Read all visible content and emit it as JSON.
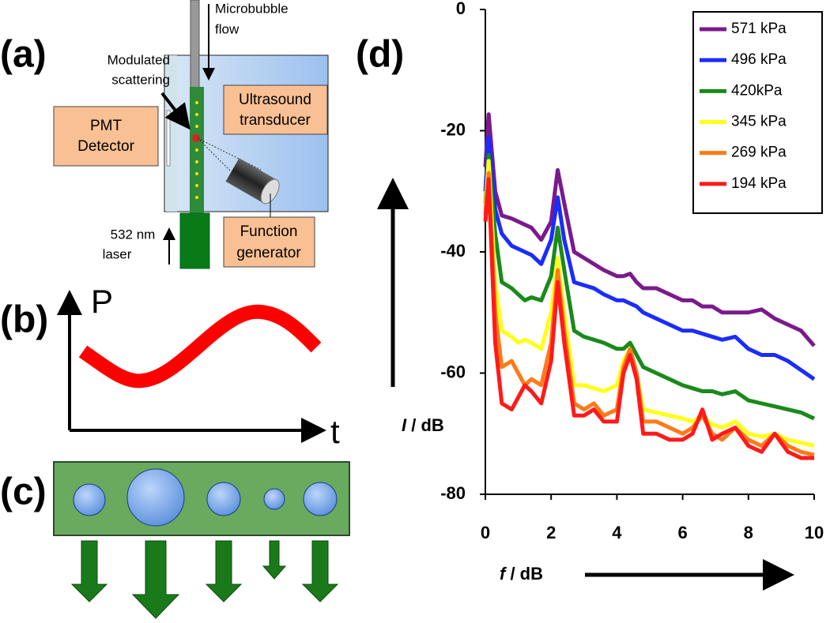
{
  "panels": {
    "a": {
      "label": "(a)",
      "flow": [
        "Microbubble",
        "flow"
      ],
      "scattering": [
        "Modulated",
        "scattering"
      ],
      "transducer": [
        "Ultrasound",
        "transducer"
      ],
      "detector": [
        "PMT",
        "Detector"
      ],
      "laser": [
        "532 nm",
        "laser"
      ],
      "generator": [
        "Function",
        "generator"
      ]
    },
    "b": {
      "label": "(b)",
      "y_label": "P",
      "x_label": "t"
    },
    "c": {
      "label": "(c)"
    },
    "d": {
      "label": "(d)"
    }
  },
  "chart_data": {
    "type": "line",
    "x_label_italic": "f",
    "x_label": " / dB",
    "y_label_italic": "I",
    "y_label": " / dB",
    "x": [
      0,
      0.1,
      0.3,
      0.5,
      0.8,
      1.0,
      1.2,
      1.4,
      1.7,
      2.0,
      2.2,
      2.4,
      2.7,
      3.0,
      3.3,
      3.6,
      4.0,
      4.2,
      4.4,
      4.6,
      4.8,
      5.2,
      5.6,
      6.0,
      6.3,
      6.6,
      6.9,
      7.2,
      7.6,
      8.0,
      8.4,
      8.8,
      9.2,
      9.6,
      10
    ],
    "xlim": [
      0,
      10
    ],
    "xticks": [
      0,
      2,
      4,
      6,
      8,
      10
    ],
    "ylim": [
      -80,
      0
    ],
    "yticks": [
      0,
      -20,
      -40,
      -60,
      -80
    ],
    "legend": "upper right",
    "series": [
      {
        "name": "571 kPa",
        "color": "#7a1a8c",
        "values": [
          -26,
          -17.3,
          -30,
          -34,
          -34.5,
          -35,
          -35.5,
          -36,
          -38,
          -35,
          -26.5,
          -32,
          -40,
          -41,
          -42,
          -43,
          -44,
          -44,
          -43.6,
          -45,
          -46,
          -46,
          -47,
          -48,
          -48,
          -49,
          -49,
          -50,
          -50,
          -50,
          -49.5,
          -51,
          -52,
          -53,
          -55.5
        ]
      },
      {
        "name": "496 kPa",
        "color": "#1a2cff",
        "values": [
          -30,
          -21,
          -33,
          -37,
          -39,
          -39.5,
          -40,
          -40.5,
          -42,
          -38,
          -31,
          -38,
          -45,
          -45.5,
          -46,
          -47,
          -48,
          -48,
          -48.5,
          -49,
          -50,
          -51,
          -52,
          -53,
          -53,
          -53.5,
          -54,
          -54.5,
          -54,
          -56,
          -57,
          -57,
          -58,
          -59.5,
          -61
        ]
      },
      {
        "name": "420kPa",
        "color": "#1a8a1a",
        "values": [
          -32,
          -24,
          -37,
          -45,
          -46,
          -47,
          -48,
          -47.5,
          -48,
          -44,
          -36,
          -43,
          -53,
          -54,
          -54.5,
          -55,
          -56,
          -56,
          -55,
          -57,
          -59,
          -60,
          -61,
          -62,
          -62.5,
          -63,
          -63,
          -63.5,
          -63,
          -64.5,
          -65,
          -65.5,
          -66,
          -66.5,
          -67.5
        ]
      },
      {
        "name": "345 kPa",
        "color": "#ffff1a",
        "values": [
          -33,
          -25,
          -45,
          -53,
          -54,
          -55,
          -54.5,
          -55,
          -56,
          -50,
          -41,
          -50,
          -62,
          -62,
          -62.5,
          -63,
          -62,
          -58,
          -56,
          -60,
          -66,
          -66.5,
          -67,
          -67.5,
          -68,
          -67,
          -68.5,
          -69,
          -68,
          -70,
          -70.5,
          -70,
          -71,
          -71.5,
          -72
        ]
      },
      {
        "name": "269 kPa",
        "color": "#ff7a1a",
        "values": [
          -34,
          -27,
          -50,
          -59,
          -58,
          -60,
          -62,
          -61,
          -62,
          -55,
          -43,
          -53,
          -65,
          -66,
          -65,
          -67,
          -66,
          -59,
          -56,
          -60,
          -68,
          -68,
          -69,
          -70,
          -69,
          -67,
          -70,
          -71,
          -69,
          -71,
          -72,
          -70,
          -72,
          -73,
          -73.5
        ]
      },
      {
        "name": "194 kPa",
        "color": "#ff1a1a",
        "values": [
          -35,
          -28,
          -55,
          -65,
          -66,
          -64,
          -62,
          -63,
          -65,
          -58,
          -45,
          -55,
          -67,
          -67,
          -66,
          -68,
          -68,
          -60,
          -57,
          -61,
          -70,
          -70,
          -71,
          -71,
          -70,
          -66,
          -71,
          -70,
          -69,
          -72,
          -73,
          -70,
          -73,
          -74,
          -74
        ]
      }
    ]
  }
}
